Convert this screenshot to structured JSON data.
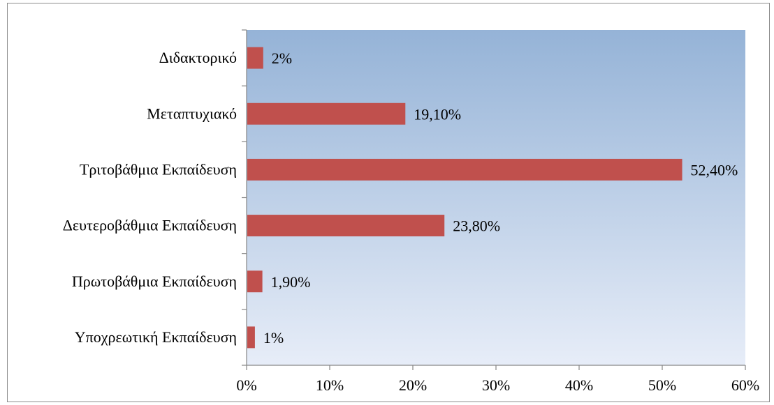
{
  "chart_data": {
    "type": "bar",
    "orientation": "horizontal",
    "categories": [
      "Διδακτορικό",
      "Μεταπτυχιακό",
      "Τριτοβάθμια Εκπαίδευση",
      "Δευτεροβάθμια Εκπαίδευση",
      "Πρωτοβάθμια Εκπαίδευση",
      "Υποχρεωτική Εκπαίδευση"
    ],
    "values": [
      2,
      19.1,
      52.4,
      23.8,
      1.9,
      1
    ],
    "value_labels": [
      "2%",
      "19,10%",
      "52,40%",
      "23,80%",
      "1,90%",
      "1%"
    ],
    "xticks": [
      "0%",
      "10%",
      "20%",
      "30%",
      "40%",
      "50%",
      "60%"
    ],
    "xlim": [
      0,
      60
    ],
    "title": "",
    "xlabel": "",
    "ylabel": "",
    "grid": false,
    "legend": "none",
    "colors": {
      "bar": "#c0504d",
      "plot_top": "#95b3d7",
      "plot_bottom": "#e7edf8"
    }
  }
}
